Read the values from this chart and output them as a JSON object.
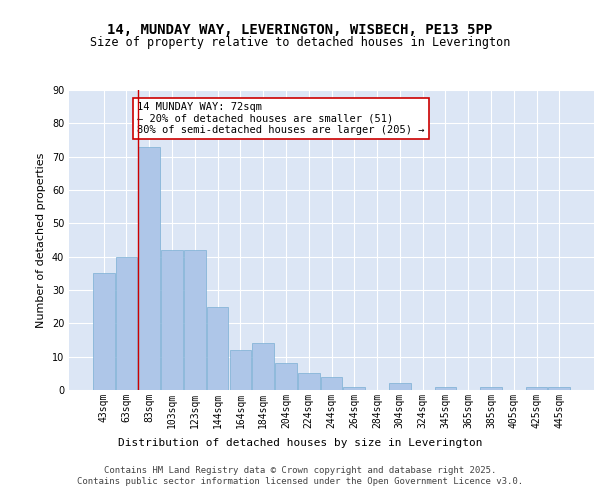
{
  "title_line1": "14, MUNDAY WAY, LEVERINGTON, WISBECH, PE13 5PP",
  "title_line2": "Size of property relative to detached houses in Leverington",
  "xlabel": "Distribution of detached houses by size in Leverington",
  "ylabel": "Number of detached properties",
  "categories": [
    "43sqm",
    "63sqm",
    "83sqm",
    "103sqm",
    "123sqm",
    "144sqm",
    "164sqm",
    "184sqm",
    "204sqm",
    "224sqm",
    "244sqm",
    "264sqm",
    "284sqm",
    "304sqm",
    "324sqm",
    "345sqm",
    "365sqm",
    "385sqm",
    "405sqm",
    "425sqm",
    "445sqm"
  ],
  "values": [
    35,
    40,
    73,
    42,
    42,
    25,
    12,
    14,
    8,
    5,
    4,
    1,
    0,
    2,
    0,
    1,
    0,
    1,
    0,
    1,
    1
  ],
  "bar_color": "#aec6e8",
  "bar_edge_color": "#7aafd4",
  "background_color": "#dce6f5",
  "grid_color": "#ffffff",
  "vline_color": "#cc0000",
  "vline_x_idx": 1.5,
  "annotation_text": "14 MUNDAY WAY: 72sqm\n← 20% of detached houses are smaller (51)\n80% of semi-detached houses are larger (205) →",
  "annotation_box_color": "#ffffff",
  "annotation_box_edge_color": "#cc0000",
  "ylim": [
    0,
    90
  ],
  "yticks": [
    0,
    10,
    20,
    30,
    40,
    50,
    60,
    70,
    80,
    90
  ],
  "footer_text": "Contains HM Land Registry data © Crown copyright and database right 2025.\nContains public sector information licensed under the Open Government Licence v3.0.",
  "title_fontsize": 10,
  "subtitle_fontsize": 8.5,
  "axis_label_fontsize": 8,
  "tick_fontsize": 7,
  "annotation_fontsize": 7.5,
  "footer_fontsize": 6.5
}
